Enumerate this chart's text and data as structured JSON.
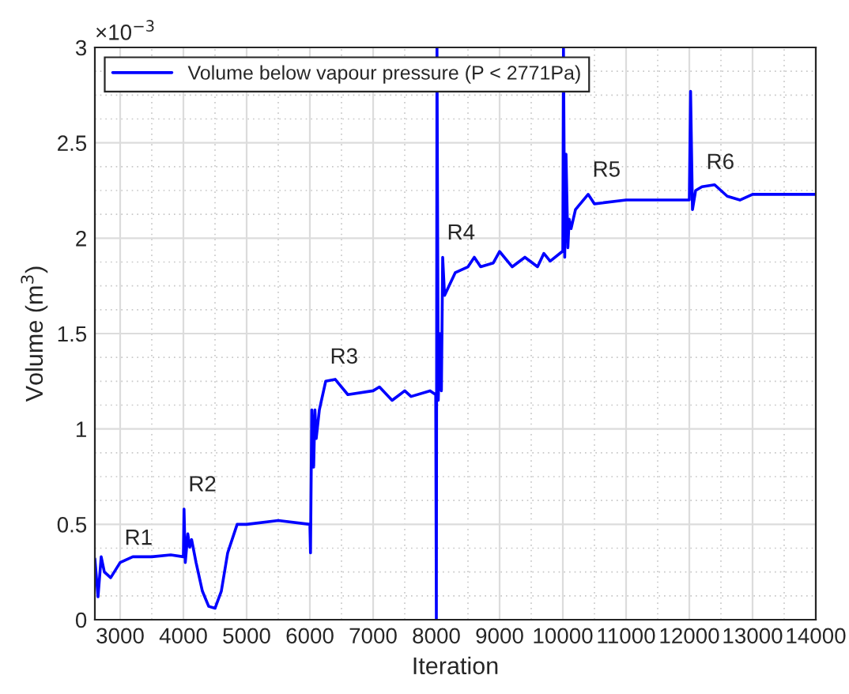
{
  "chart_data": {
    "type": "line",
    "xlabel": "Iteration",
    "ylabel": "Volume (m$^{3}$)",
    "x": [
      2600,
      2650,
      2700,
      2750,
      2850,
      3000,
      3200,
      3500,
      3800,
      4000,
      4010,
      4030,
      4070,
      4100,
      4130,
      4200,
      4300,
      4400,
      4500,
      4600,
      4700,
      4850,
      5000,
      5500,
      6000,
      6010,
      6030,
      6060,
      6080,
      6100,
      6150,
      6250,
      6400,
      6600,
      7000,
      7100,
      7300,
      7500,
      7600,
      7900,
      7990,
      8000,
      8010,
      8030,
      8060,
      8080,
      8100,
      8130,
      8200,
      8300,
      8500,
      8600,
      8700,
      8900,
      9000,
      9200,
      9400,
      9600,
      9700,
      9800,
      9990,
      10000,
      10010,
      10030,
      10050,
      10080,
      10100,
      10130,
      10200,
      10400,
      10500,
      11000,
      12000,
      12020,
      12050,
      12100,
      12200,
      12400,
      12600,
      12800,
      13000,
      14000
    ],
    "series": [
      {
        "name": "Volume below vapour pressure (P < 2771Pa)",
        "color": "#0000ff",
        "values": [
          0.32,
          0.12,
          0.33,
          0.25,
          0.22,
          0.3,
          0.33,
          0.33,
          0.34,
          0.33,
          0.58,
          0.3,
          0.45,
          0.38,
          0.42,
          0.3,
          0.15,
          0.07,
          0.06,
          0.15,
          0.35,
          0.5,
          0.5,
          0.52,
          0.5,
          0.35,
          1.1,
          0.8,
          1.1,
          0.95,
          1.1,
          1.25,
          1.26,
          1.18,
          1.2,
          1.22,
          1.15,
          1.2,
          1.17,
          1.2,
          1.18,
          0,
          3.0,
          1.15,
          1.5,
          1.2,
          1.9,
          1.7,
          1.75,
          1.82,
          1.85,
          1.9,
          1.85,
          1.87,
          1.93,
          1.85,
          1.9,
          1.85,
          1.92,
          1.88,
          1.93,
          1.93,
          3.0,
          1.9,
          2.44,
          1.95,
          2.1,
          2.05,
          2.15,
          2.23,
          2.18,
          2.2,
          2.2,
          2.77,
          2.15,
          2.25,
          2.27,
          2.28,
          2.22,
          2.2,
          2.23,
          2.23
        ]
      }
    ],
    "xlim": [
      2600,
      14000
    ],
    "xticks": [
      3000,
      4000,
      5000,
      6000,
      7000,
      8000,
      9000,
      10000,
      11000,
      12000,
      13000,
      14000
    ],
    "ylim": [
      0,
      3
    ],
    "yticks": [
      0,
      0.5,
      1,
      1.5,
      2,
      2.5,
      3
    ],
    "annotations": [
      "×10$^{−3}$",
      {
        "text": "R1",
        "x": 3000,
        "y": 0.3
      },
      {
        "text": "R2",
        "x": 4010,
        "y": 0.58
      },
      {
        "text": "R3",
        "x": 6250,
        "y": 1.25
      },
      {
        "text": "R4",
        "x": 8100,
        "y": 1.9
      },
      {
        "text": "R5",
        "x": 10400,
        "y": 2.23
      },
      {
        "text": "R6",
        "x": 12200,
        "y": 2.27
      }
    ],
    "grid": true,
    "legend": "top left",
    "marker": "none",
    "line_style": "solid"
  }
}
